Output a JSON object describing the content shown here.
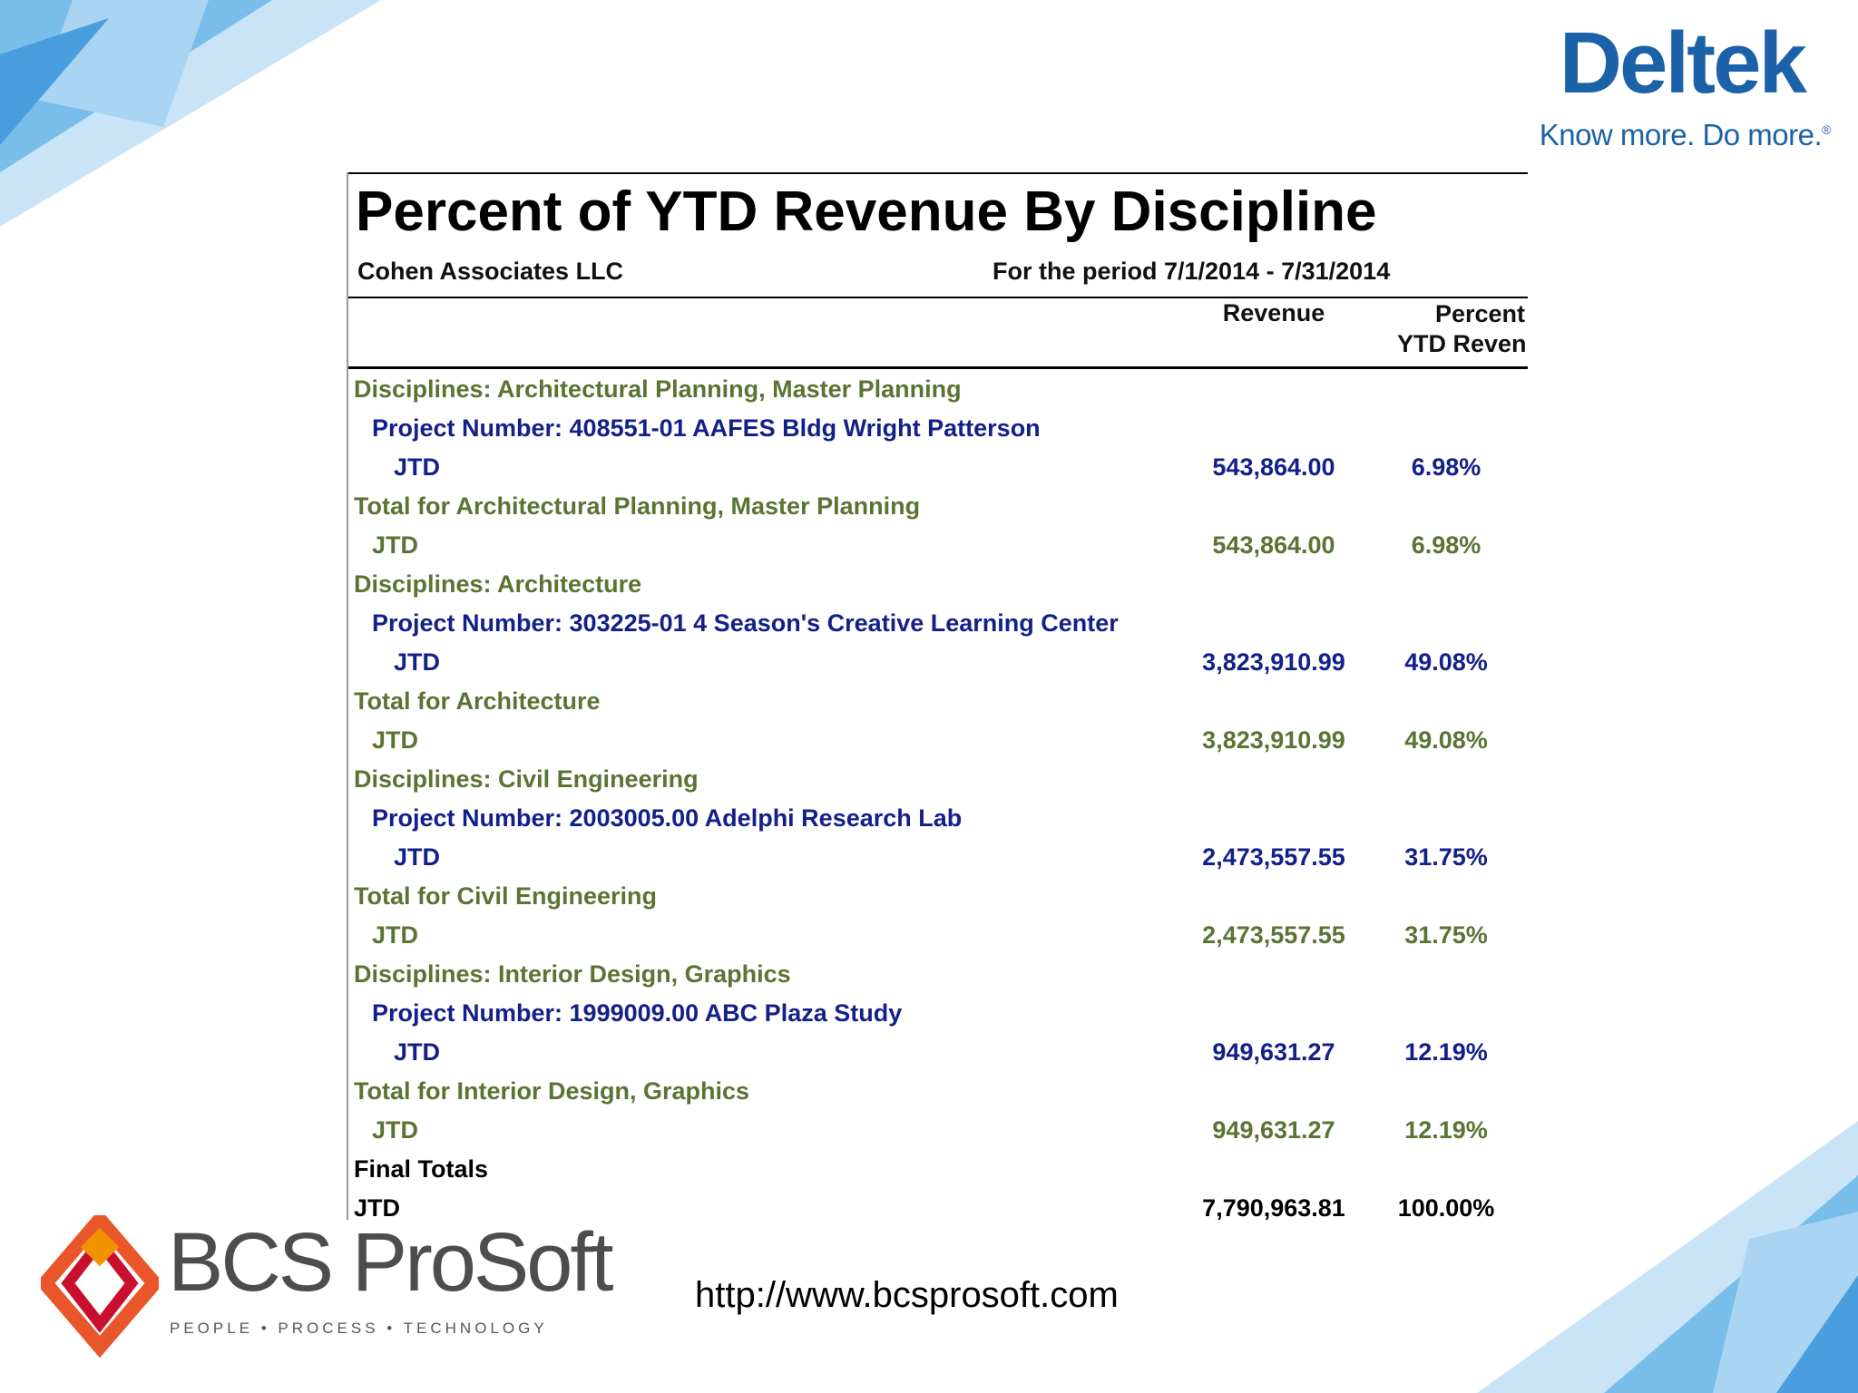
{
  "branding": {
    "deltek_word": "Deltek",
    "deltek_tagline": "Know more. Do more.",
    "deltek_reg": "®",
    "deltek_color": "#1b62a8",
    "bcs_name": "BCS ProSoft",
    "bcs_tagline": "PEOPLE • PROCESS • TECHNOLOGY",
    "website": "http://www.bcsprosoft.com"
  },
  "report": {
    "title": "Percent of YTD Revenue By Discipline",
    "company": "Cohen Associates LLC",
    "period": "For the period 7/1/2014 - 7/31/2014",
    "col_revenue": "Revenue",
    "col_percent_line1": "Percent of",
    "col_percent_line2": "YTD Revenue",
    "rows": [
      {
        "type": "discipline",
        "label": "Disciplines: Architectural Planning, Master Planning",
        "revenue": "",
        "percent": ""
      },
      {
        "type": "project",
        "label": "Project Number: 408551-01 AAFES Bldg Wright Patterson",
        "revenue": "",
        "percent": ""
      },
      {
        "type": "jtd-proj",
        "label": "JTD",
        "revenue": "543,864.00",
        "percent": "6.98%"
      },
      {
        "type": "total",
        "label": "Total for Architectural Planning, Master Planning",
        "revenue": "",
        "percent": ""
      },
      {
        "type": "jtd-total",
        "label": "JTD",
        "revenue": "543,864.00",
        "percent": "6.98%"
      },
      {
        "type": "discipline",
        "label": "Disciplines: Architecture",
        "revenue": "",
        "percent": ""
      },
      {
        "type": "project",
        "label": "Project Number: 303225-01 4 Season's Creative Learning Center",
        "revenue": "",
        "percent": ""
      },
      {
        "type": "jtd-proj",
        "label": "JTD",
        "revenue": "3,823,910.99",
        "percent": "49.08%"
      },
      {
        "type": "total",
        "label": "Total for Architecture",
        "revenue": "",
        "percent": ""
      },
      {
        "type": "jtd-total",
        "label": "JTD",
        "revenue": "3,823,910.99",
        "percent": "49.08%"
      },
      {
        "type": "discipline",
        "label": "Disciplines: Civil Engineering",
        "revenue": "",
        "percent": ""
      },
      {
        "type": "project",
        "label": "Project Number: 2003005.00 Adelphi Research Lab",
        "revenue": "",
        "percent": ""
      },
      {
        "type": "jtd-proj",
        "label": "JTD",
        "revenue": "2,473,557.55",
        "percent": "31.75%"
      },
      {
        "type": "total",
        "label": "Total for Civil Engineering",
        "revenue": "",
        "percent": ""
      },
      {
        "type": "jtd-total",
        "label": "JTD",
        "revenue": "2,473,557.55",
        "percent": "31.75%"
      },
      {
        "type": "discipline",
        "label": "Disciplines: Interior Design, Graphics",
        "revenue": "",
        "percent": ""
      },
      {
        "type": "project",
        "label": "Project Number: 1999009.00 ABC Plaza Study",
        "revenue": "",
        "percent": ""
      },
      {
        "type": "jtd-proj",
        "label": "JTD",
        "revenue": "949,631.27",
        "percent": "12.19%"
      },
      {
        "type": "total",
        "label": "Total for Interior Design, Graphics",
        "revenue": "",
        "percent": ""
      },
      {
        "type": "jtd-total",
        "label": "JTD",
        "revenue": "949,631.27",
        "percent": "12.19%"
      },
      {
        "type": "final",
        "label": "Final Totals",
        "revenue": "",
        "percent": ""
      },
      {
        "type": "final-jtd",
        "label": "JTD",
        "revenue": "7,790,963.81",
        "percent": "100.00%"
      }
    ]
  }
}
